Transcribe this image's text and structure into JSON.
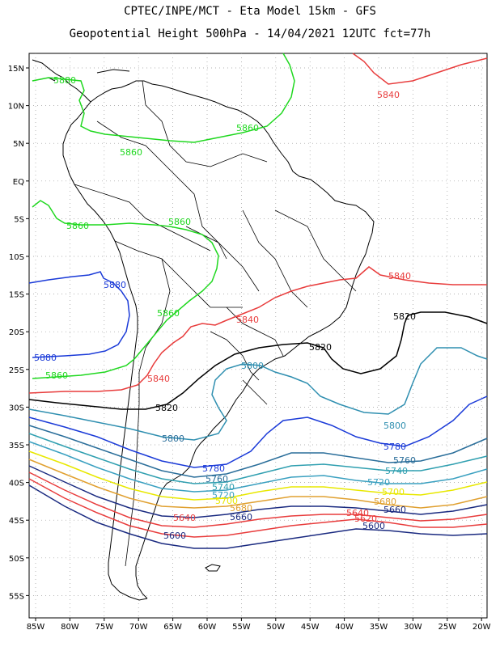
{
  "title_line1": "CPTEC/INPE/MCT  -  Eta Model 15km  -  GFS",
  "title_line2": "Geopotential Height 500hPa - 14/04/2021 12UTC fct=77h",
  "lat_labels": [
    "15N",
    "10N",
    "5N",
    "EQ",
    "5S",
    "10S",
    "15S",
    "20S",
    "25S",
    "30S",
    "35S",
    "40S",
    "45S",
    "50S",
    "55S"
  ],
  "lon_labels": [
    "85W",
    "80W",
    "75W",
    "70W",
    "65W",
    "60W",
    "55W",
    "50W",
    "45W",
    "40W",
    "35W",
    "30W",
    "25W",
    "20W"
  ],
  "contour_colors": {
    "5880": "#1fd81f",
    "5860": "#1fd81f",
    "5840": "#e83c3c",
    "5820": "#000000",
    "5800": "#2f8fb0",
    "5780": "#1a3ad8",
    "5760": "#2a6e9a",
    "5740": "#2f9fb0",
    "5720": "#3aa0c0",
    "5700": "#e8e800",
    "5680": "#e0a030",
    "5660": "#1a2a80",
    "5640": "#e83c3c",
    "5620": "#e83c3c",
    "5600": "#1a2a80"
  },
  "contour_labels": {
    "l1": "5880",
    "l2": "5860",
    "l3": "5860",
    "l4": "5860",
    "l5": "5860",
    "l6": "5860",
    "l7": "5880",
    "l8": "5860",
    "l9": "5840",
    "l10": "5840",
    "l11": "5840",
    "l12": "5840",
    "l13": "5820",
    "l14": "5820",
    "l15": "5820",
    "l16": "5800",
    "l17": "5800",
    "l18": "5800",
    "l19": "5780",
    "l20": "5780",
    "l21": "5760",
    "l22": "5760",
    "l23": "5740",
    "l24": "5740",
    "l25": "5720",
    "l26": "5720",
    "l27": "5700",
    "l28": "5700",
    "l29": "5680",
    "l30": "5680",
    "l31": "5660",
    "l32": "5660",
    "l33": "5640",
    "l34": "5640",
    "l35": "5620",
    "l36": "5600",
    "l37": "5600",
    "l38": "5880"
  }
}
